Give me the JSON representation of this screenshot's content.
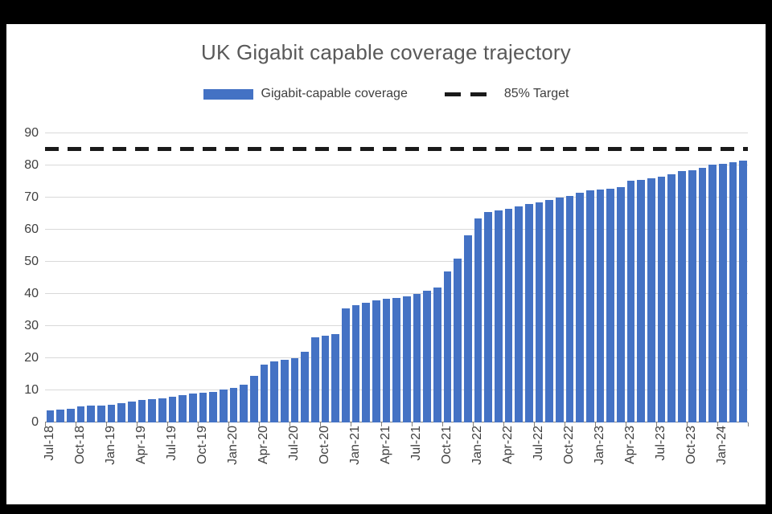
{
  "window": {
    "background": "#000000",
    "canvas": "#ffffff"
  },
  "chart": {
    "title": "UK Gigabit capable coverage trajectory",
    "legend": [
      {
        "label": "Gigabit-capable coverage",
        "type": "bar-swatch",
        "color": "#4472C4"
      },
      {
        "label": "85% Target",
        "type": "dashed-line",
        "color": "#1a1a1a"
      }
    ]
  },
  "chart_data": {
    "type": "bar",
    "title": "UK Gigabit capable coverage trajectory",
    "series_name": "Gigabit-capable coverage",
    "bar_color": "#4472C4",
    "grid": true,
    "legend_position": "top",
    "ylim": [
      0,
      90
    ],
    "yticks": [
      0,
      10,
      20,
      30,
      40,
      50,
      60,
      70,
      80,
      90
    ],
    "xtick_interval": 3,
    "xtick_labels": [
      "Jul-18",
      "Oct-18",
      "Jan-19",
      "Apr-19",
      "Jul-19",
      "Oct-19",
      "Jan-20",
      "Apr-20",
      "Jul-20",
      "Oct-20",
      "Jan-21",
      "Apr-21",
      "Jul-21",
      "Oct-21",
      "Jan-22",
      "Apr-22",
      "Jul-22",
      "Oct-22",
      "Jan-23",
      "Apr-23",
      "Jul-23",
      "Oct-23",
      "Jan-24"
    ],
    "target_line": {
      "label": "85% Target",
      "value": 85,
      "color": "#1a1a1a"
    },
    "categories": [
      "Jul-18",
      "Aug-18",
      "Sep-18",
      "Oct-18",
      "Nov-18",
      "Dec-18",
      "Jan-19",
      "Feb-19",
      "Mar-19",
      "Apr-19",
      "May-19",
      "Jun-19",
      "Jul-19",
      "Aug-19",
      "Sep-19",
      "Oct-19",
      "Nov-19",
      "Dec-19",
      "Jan-20",
      "Feb-20",
      "Mar-20",
      "Apr-20",
      "May-20",
      "Jun-20",
      "Jul-20",
      "Aug-20",
      "Sep-20",
      "Oct-20",
      "Nov-20",
      "Dec-20",
      "Jan-21",
      "Feb-21",
      "Mar-21",
      "Apr-21",
      "May-21",
      "Jun-21",
      "Jul-21",
      "Aug-21",
      "Sep-21",
      "Oct-21",
      "Nov-21",
      "Dec-21",
      "Jan-22",
      "Feb-22",
      "Mar-22",
      "Apr-22",
      "May-22",
      "Jun-22",
      "Jul-22",
      "Aug-22",
      "Sep-22",
      "Oct-22",
      "Nov-22",
      "Dec-22",
      "Jan-23",
      "Feb-23",
      "Mar-23",
      "Apr-23",
      "May-23",
      "Jun-23",
      "Jul-23",
      "Aug-23",
      "Sep-23",
      "Oct-23",
      "Nov-23",
      "Dec-23",
      "Jan-24",
      "Feb-24",
      "Mar-24"
    ],
    "values": [
      3.7,
      4.0,
      4.3,
      5.0,
      5.2,
      5.3,
      5.5,
      6.0,
      6.4,
      7.0,
      7.3,
      7.6,
      8.0,
      8.4,
      9.0,
      9.3,
      9.6,
      10.2,
      10.8,
      11.8,
      14.5,
      18.0,
      19.0,
      19.5,
      20.0,
      22.0,
      26.5,
      27.0,
      27.5,
      35.5,
      36.5,
      37.3,
      38.0,
      38.4,
      38.8,
      39.3,
      40.0,
      41.0,
      42.0,
      47.0,
      51.0,
      58.2,
      63.5,
      65.5,
      66.0,
      66.5,
      67.2,
      68.0,
      68.5,
      69.2,
      70.0,
      70.5,
      71.5,
      72.2,
      72.5,
      72.8,
      73.2,
      75.2,
      75.6,
      76.1,
      76.6,
      77.2,
      78.2,
      78.6,
      79.3,
      80.2,
      80.6,
      81.0,
      81.4
    ]
  }
}
